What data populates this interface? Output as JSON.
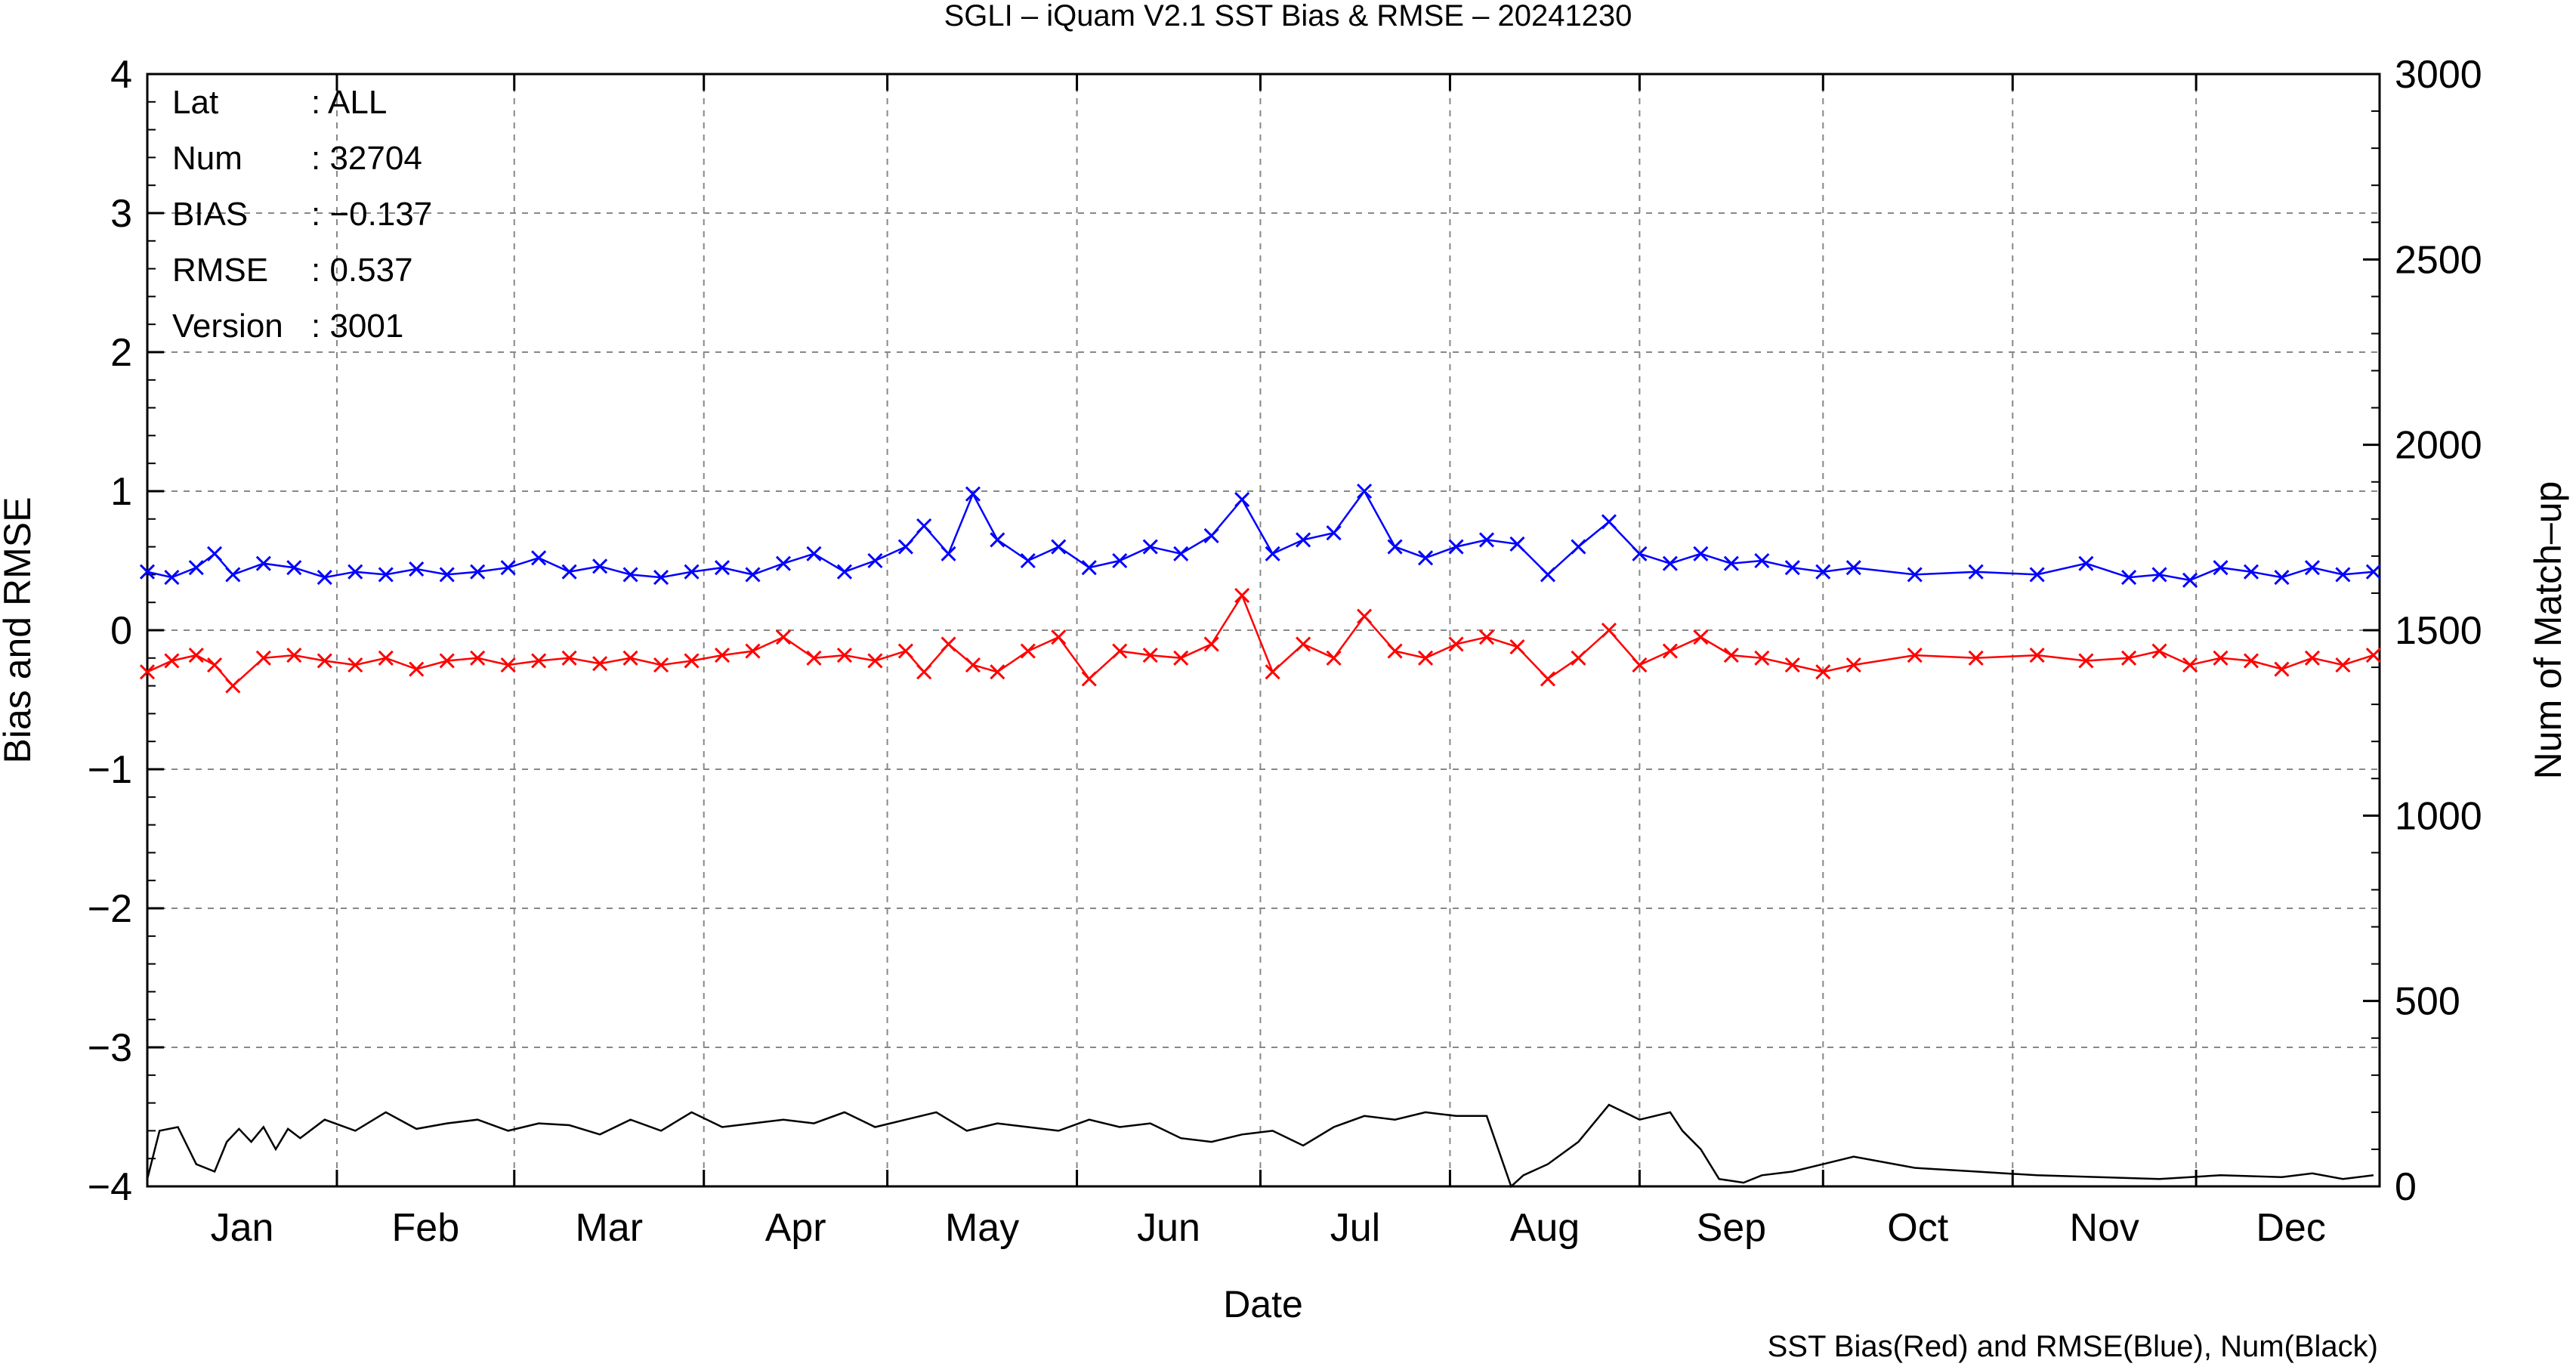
{
  "chart_data": {
    "type": "line",
    "title": "SGLI – iQuam V2.1 SST Bias & RMSE  – 20241230",
    "xlabel": "Date",
    "ylabel": "Bias and RMSE",
    "ylabel_right": "Num of Match–up",
    "footnote": "SST Bias(Red) and RMSE(Blue), Num(Black)",
    "x_ticks": [
      "Jan",
      "Feb",
      "Mar",
      "Apr",
      "May",
      "Jun",
      "Jul",
      "Aug",
      "Sep",
      "Oct",
      "Nov",
      "Dec"
    ],
    "y_ticks": [
      "−4",
      "−3",
      "−2",
      "−1",
      "0",
      "1",
      "2",
      "3",
      "4"
    ],
    "y2_ticks": [
      "0",
      "500",
      "1000",
      "1500",
      "2000",
      "2500",
      "3000"
    ],
    "ylim": [
      -4,
      4
    ],
    "y2lim": [
      0,
      3000
    ],
    "xlim": [
      1,
      366
    ],
    "grid": true,
    "info": [
      {
        "label": "Lat",
        "value": ": ALL"
      },
      {
        "label": "Num",
        "value": ": 32704"
      },
      {
        "label": "BIAS",
        "value": ": −0.137"
      },
      {
        "label": "RMSE",
        "value": ": 0.537"
      },
      {
        "label": "Version",
        "value": ": 3001"
      }
    ],
    "colors": {
      "bias": "#ff0000",
      "rmse": "#0000ff",
      "num": "#000000"
    },
    "series": [
      {
        "key": "rmse",
        "x": [
          1,
          5,
          9,
          12,
          15,
          20,
          25,
          30,
          35,
          40,
          45,
          50,
          55,
          60,
          65,
          70,
          75,
          80,
          85,
          90,
          95,
          100,
          105,
          110,
          115,
          120,
          125,
          128,
          132,
          136,
          140,
          145,
          150,
          155,
          160,
          165,
          170,
          175,
          180,
          185,
          190,
          195,
          200,
          205,
          210,
          215,
          220,
          225,
          230,
          235,
          240,
          245,
          250,
          255,
          260,
          265,
          270,
          275,
          280,
          290,
          300,
          310,
          318,
          325,
          330,
          335,
          340,
          345,
          350,
          355,
          360,
          365
        ],
        "y": [
          0.42,
          0.38,
          0.45,
          0.55,
          0.4,
          0.48,
          0.45,
          0.38,
          0.42,
          0.4,
          0.44,
          0.4,
          0.42,
          0.45,
          0.52,
          0.42,
          0.46,
          0.4,
          0.38,
          0.42,
          0.45,
          0.4,
          0.48,
          0.55,
          0.42,
          0.5,
          0.6,
          0.75,
          0.55,
          0.98,
          0.65,
          0.5,
          0.6,
          0.45,
          0.5,
          0.6,
          0.55,
          0.68,
          0.94,
          0.55,
          0.65,
          0.7,
          1.0,
          0.6,
          0.52,
          0.6,
          0.65,
          0.62,
          0.4,
          0.6,
          0.78,
          0.55,
          0.48,
          0.55,
          0.48,
          0.5,
          0.45,
          0.42,
          0.45,
          0.4,
          0.42,
          0.4,
          0.48,
          0.38,
          0.4,
          0.36,
          0.45,
          0.42,
          0.38,
          0.45,
          0.4,
          0.42
        ]
      },
      {
        "key": "bias",
        "x": [
          1,
          5,
          9,
          12,
          15,
          20,
          25,
          30,
          35,
          40,
          45,
          50,
          55,
          60,
          65,
          70,
          75,
          80,
          85,
          90,
          95,
          100,
          105,
          110,
          115,
          120,
          125,
          128,
          132,
          136,
          140,
          145,
          150,
          155,
          160,
          165,
          170,
          175,
          180,
          185,
          190,
          195,
          200,
          205,
          210,
          215,
          220,
          225,
          230,
          235,
          240,
          245,
          250,
          255,
          260,
          265,
          270,
          275,
          280,
          290,
          300,
          310,
          318,
          325,
          330,
          335,
          340,
          345,
          350,
          355,
          360,
          365
        ],
        "y": [
          -0.3,
          -0.22,
          -0.18,
          -0.25,
          -0.4,
          -0.2,
          -0.18,
          -0.22,
          -0.25,
          -0.2,
          -0.28,
          -0.22,
          -0.2,
          -0.25,
          -0.22,
          -0.2,
          -0.24,
          -0.2,
          -0.25,
          -0.22,
          -0.18,
          -0.15,
          -0.05,
          -0.2,
          -0.18,
          -0.22,
          -0.15,
          -0.3,
          -0.1,
          -0.25,
          -0.3,
          -0.15,
          -0.05,
          -0.35,
          -0.15,
          -0.18,
          -0.2,
          -0.1,
          0.25,
          -0.3,
          -0.1,
          -0.2,
          0.1,
          -0.15,
          -0.2,
          -0.1,
          -0.05,
          -0.12,
          -0.35,
          -0.2,
          0.0,
          -0.25,
          -0.15,
          -0.05,
          -0.18,
          -0.2,
          -0.25,
          -0.3,
          -0.25,
          -0.18,
          -0.2,
          -0.18,
          -0.22,
          -0.2,
          -0.15,
          -0.25,
          -0.2,
          -0.22,
          -0.28,
          -0.2,
          -0.25,
          -0.18
        ]
      },
      {
        "key": "num",
        "axis": "right",
        "x": [
          1,
          3,
          6,
          9,
          12,
          14,
          16,
          18,
          20,
          22,
          24,
          26,
          30,
          35,
          40,
          45,
          50,
          55,
          60,
          65,
          70,
          75,
          80,
          85,
          90,
          95,
          100,
          105,
          110,
          115,
          120,
          125,
          130,
          135,
          140,
          145,
          150,
          155,
          160,
          165,
          170,
          175,
          180,
          185,
          190,
          195,
          200,
          205,
          210,
          215,
          220,
          224,
          226,
          230,
          235,
          240,
          245,
          250,
          252,
          255,
          258,
          262,
          265,
          270,
          280,
          290,
          300,
          310,
          320,
          330,
          340,
          350,
          355,
          360,
          365
        ],
        "y": [
          20,
          150,
          160,
          60,
          40,
          120,
          155,
          120,
          160,
          100,
          155,
          130,
          180,
          150,
          200,
          155,
          170,
          180,
          150,
          170,
          165,
          140,
          180,
          150,
          200,
          160,
          170,
          180,
          170,
          200,
          160,
          180,
          200,
          150,
          170,
          160,
          150,
          180,
          160,
          170,
          130,
          120,
          140,
          150,
          110,
          160,
          190,
          180,
          200,
          190,
          190,
          0,
          30,
          60,
          120,
          220,
          180,
          200,
          150,
          100,
          20,
          10,
          30,
          40,
          80,
          50,
          40,
          30,
          25,
          20,
          30,
          25,
          35,
          20,
          30
        ]
      }
    ]
  }
}
